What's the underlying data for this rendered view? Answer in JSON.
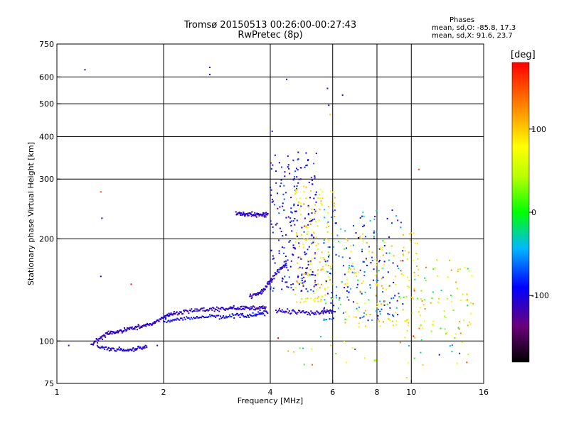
{
  "chart_data": {
    "type": "scatter",
    "title": "Tromsø 20150513 00:26:00-00:27:43",
    "subtitle": "RwPretec (8p)",
    "xlabel": "Frequency [MHz]",
    "ylabel": "Stationary phase Virtual Height [km]",
    "xscale": "log",
    "yscale": "log",
    "xlim": [
      1,
      16
    ],
    "ylim": [
      75,
      750
    ],
    "x_ticks": [
      1,
      2,
      4,
      6,
      8,
      10,
      16
    ],
    "y_ticks": [
      75,
      100,
      200,
      300,
      400,
      500,
      600,
      750
    ],
    "x_grid": [
      2,
      4,
      6,
      8,
      10
    ],
    "y_grid": [
      100,
      200,
      300,
      400,
      500,
      600
    ],
    "grid": true,
    "color_scale": {
      "label": "[deg]",
      "range": [
        -180,
        180
      ],
      "ticks": [
        -100,
        0,
        100
      ]
    },
    "stats": {
      "heading": "Phases",
      "o_line": "mean, sd,O: -85.8, 17.3",
      "x_line": "mean, sd,X:  91.6, 23.7"
    },
    "traces": [
      {
        "name": "",
        "x": [
          1.25,
          1.31,
          1.37,
          1.42,
          1.5,
          1.58,
          1.66,
          1.75,
          1.85,
          1.95,
          2.05,
          2.15,
          2.3,
          2.5,
          2.7,
          2.9,
          3.1,
          3.3,
          3.5,
          3.7,
          3.9
        ],
        "y": [
          97,
          101,
          104,
          106,
          107,
          108,
          109,
          111,
          112,
          116,
          119,
          120,
          122,
          124,
          124,
          124,
          125,
          125,
          125,
          125,
          126
        ],
        "phase": -110
      },
      {
        "name": "",
        "x": [
          1.3,
          1.4,
          1.5,
          1.6,
          1.7,
          1.8
        ],
        "y": [
          96,
          95,
          94,
          94,
          95,
          97
        ],
        "phase": -105
      },
      {
        "name": "",
        "x": [
          2.0,
          2.2,
          2.45,
          2.7,
          2.95,
          3.2,
          3.45,
          3.7,
          3.95
        ],
        "y": [
          114,
          116,
          117,
          118,
          118,
          119,
          119,
          120,
          121
        ],
        "phase": -95
      },
      {
        "name": "",
        "x": [
          3.2,
          3.35,
          3.5,
          3.65,
          3.8,
          3.95
        ],
        "y": [
          237,
          237,
          236,
          235,
          236,
          237
        ],
        "phase": -110
      },
      {
        "name": "",
        "x": [
          3.5,
          3.7,
          3.85,
          4.0,
          4.2,
          4.45
        ],
        "y": [
          135,
          138,
          142,
          150,
          160,
          170
        ],
        "phase": -105
      },
      {
        "name": "",
        "x": [
          4.15,
          4.5,
          4.9,
          5.3,
          5.7,
          6.0
        ],
        "y": [
          123,
          122,
          121,
          121,
          122,
          122
        ],
        "phase": -110
      }
    ],
    "clouds": [
      {
        "x_range": [
          4.0,
          5.4
        ],
        "y_range": [
          140,
          360
        ],
        "n": 230,
        "phase_mean": -95,
        "phase_sd": 25
      },
      {
        "x_range": [
          4.7,
          6.1
        ],
        "y_range": [
          130,
          290
        ],
        "n": 150,
        "phase_mean": 85,
        "phase_sd": 35
      },
      {
        "x_range": [
          5.6,
          9.5
        ],
        "y_range": [
          115,
          245
        ],
        "n": 190,
        "phase_mean": -70,
        "phase_sd": 60
      },
      {
        "x_range": [
          6.5,
          10.5
        ],
        "y_range": [
          110,
          210
        ],
        "n": 120,
        "phase_mean": 95,
        "phase_sd": 25
      },
      {
        "x_range": [
          9.5,
          15.0
        ],
        "y_range": [
          105,
          175
        ],
        "n": 90,
        "phase_mean": 60,
        "phase_sd": 80
      },
      {
        "x_range": [
          4.0,
          15.0
        ],
        "y_range": [
          85,
          105
        ],
        "n": 40,
        "phase_mean": 40,
        "phase_sd": 120
      }
    ],
    "outliers": [
      {
        "x": 1.2,
        "y": 630,
        "phase": -110
      },
      {
        "x": 2.7,
        "y": 640,
        "phase": -110
      },
      {
        "x": 2.7,
        "y": 610,
        "phase": -95
      },
      {
        "x": 1.33,
        "y": 275,
        "phase": 150
      },
      {
        "x": 1.34,
        "y": 230,
        "phase": -110
      },
      {
        "x": 1.33,
        "y": 155,
        "phase": -110
      },
      {
        "x": 1.62,
        "y": 147,
        "phase": 170
      },
      {
        "x": 4.45,
        "y": 590,
        "phase": -110
      },
      {
        "x": 5.8,
        "y": 555,
        "phase": -110
      },
      {
        "x": 5.85,
        "y": 495,
        "phase": -110
      },
      {
        "x": 5.9,
        "y": 465,
        "phase": 100
      },
      {
        "x": 6.4,
        "y": 530,
        "phase": -110
      },
      {
        "x": 4.05,
        "y": 415,
        "phase": -110
      },
      {
        "x": 10.5,
        "y": 320,
        "phase": 150
      },
      {
        "x": 1.08,
        "y": 97,
        "phase": -110
      },
      {
        "x": 1.92,
        "y": 97,
        "phase": -110
      },
      {
        "x": 9.7,
        "y": 78,
        "phase": 100
      }
    ]
  }
}
